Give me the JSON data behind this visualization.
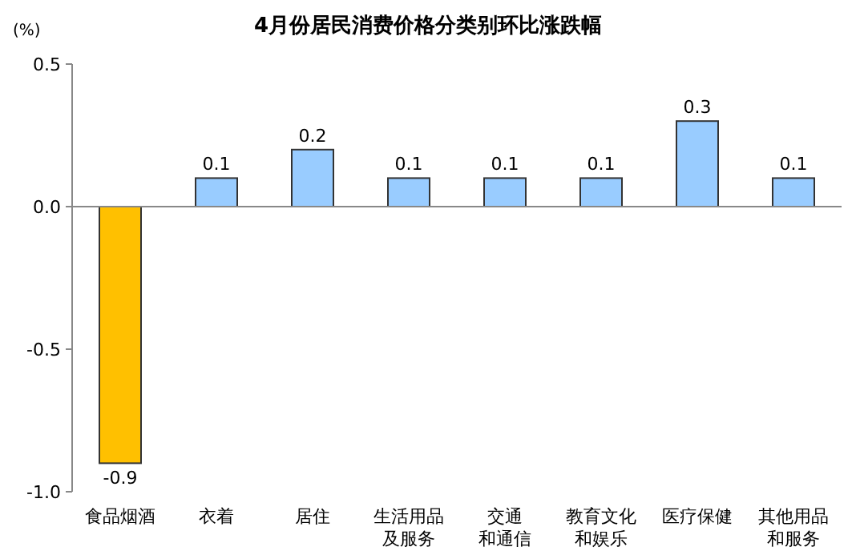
{
  "chart_data": {
    "type": "bar",
    "title": "4月份居民消费价格分类别环比涨跌幅",
    "ylabel": "(%)",
    "categories": [
      "食品烟酒",
      "衣着",
      "居住",
      "生活用品及服务",
      "交通和通信",
      "教育文化和娱乐",
      "医疗保健",
      "其他用品和服务"
    ],
    "values": [
      -0.9,
      0.1,
      0.2,
      0.1,
      0.1,
      0.1,
      0.3,
      0.1
    ],
    "colors": [
      "#ffc000",
      "#99ccff",
      "#99ccff",
      "#99ccff",
      "#99ccff",
      "#99ccff",
      "#99ccff",
      "#99ccff"
    ],
    "ylim": [
      -1.0,
      0.5
    ],
    "yticks": [
      {
        "value": -1.0,
        "label": "-1.0"
      },
      {
        "value": -0.5,
        "label": "-0.5"
      },
      {
        "value": 0,
        "label": "0.0"
      },
      {
        "value": 0.5,
        "label": "0.5"
      }
    ],
    "data_labels": true
  }
}
